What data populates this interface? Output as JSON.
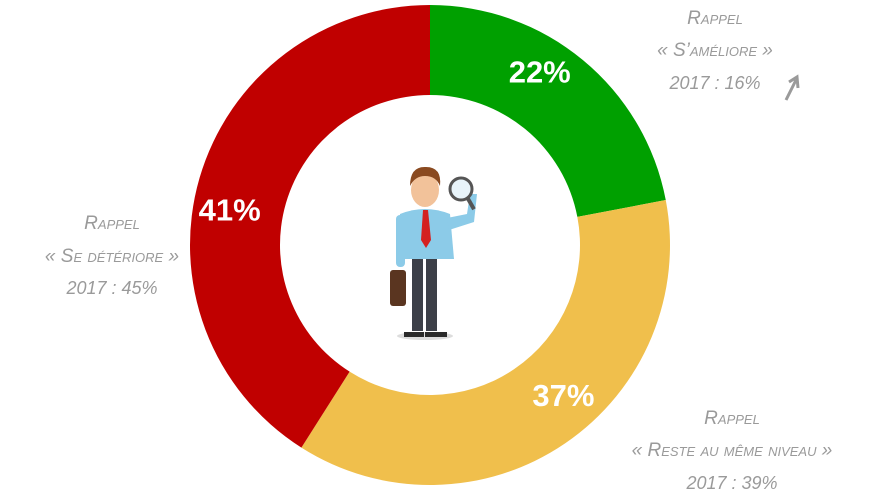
{
  "chart_data": {
    "type": "donut",
    "categories": [
      "« S’améliore »",
      "« Reste au même niveau »",
      "« Se détériore »"
    ],
    "values": [
      22,
      37,
      41
    ],
    "value_labels": [
      "22%",
      "37%",
      "41%"
    ],
    "colors": [
      "#00a000",
      "#f0bf4c",
      "#c00000"
    ],
    "annotations": [
      {
        "title": "Rappel",
        "text": "2017 : 16%"
      },
      {
        "title": "Rappel",
        "text": "2017 : 39%"
      },
      {
        "title": "Rappel",
        "text": "2017 : 45%"
      }
    ]
  }
}
